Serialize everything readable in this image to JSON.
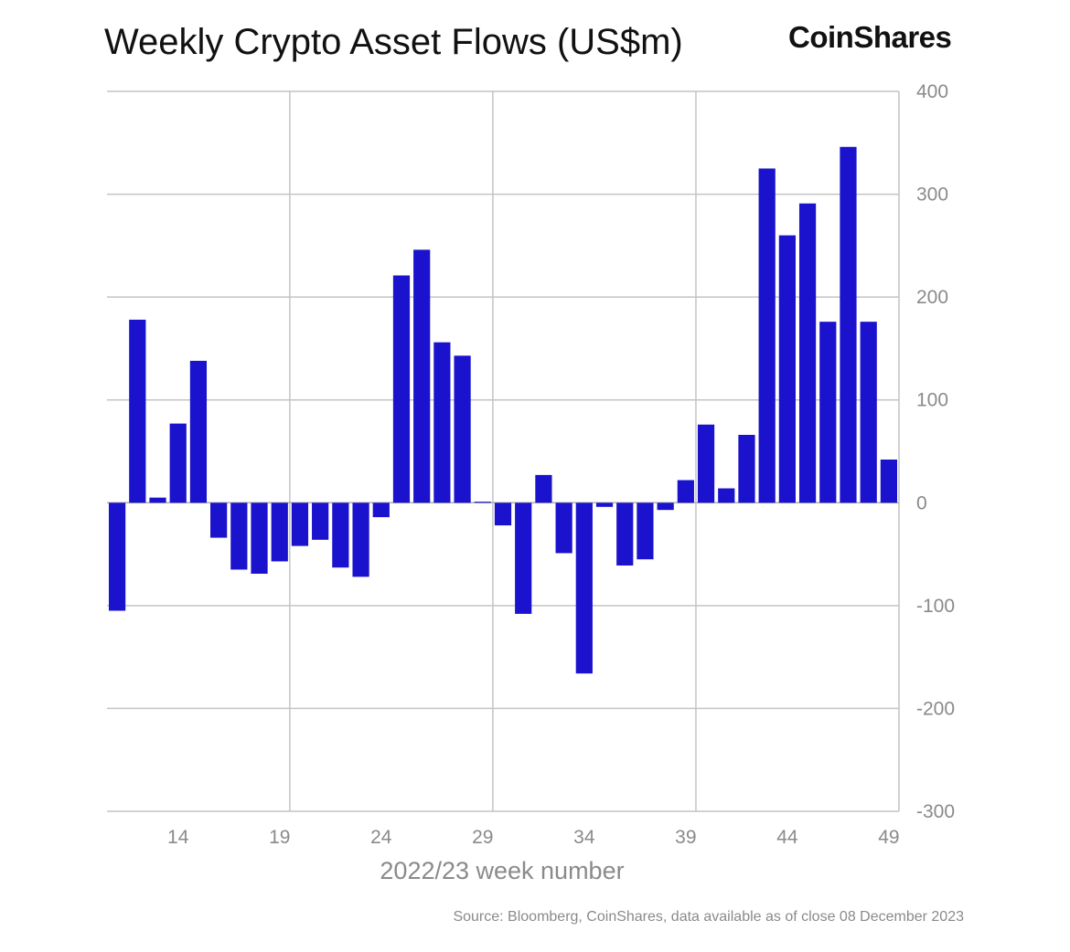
{
  "header": {
    "brand": "CoinShares"
  },
  "footer": {
    "source": "Source: Bloomberg, CoinShares, data available as of close 08 December 2023"
  },
  "chart_data": {
    "type": "bar",
    "title": "Weekly Crypto Asset Flows (US$m)",
    "xlabel": "2022/23 week number",
    "ylabel": "",
    "ylim": [
      -300,
      400
    ],
    "yticks": [
      400,
      300,
      200,
      100,
      0,
      -100,
      -200,
      -300
    ],
    "xticks": [
      14,
      19,
      24,
      29,
      34,
      39,
      44,
      49
    ],
    "y_axis_side": "right",
    "grid": true,
    "bar_color": "#1a12cc",
    "x": [
      11,
      12,
      13,
      14,
      15,
      16,
      17,
      18,
      19,
      20,
      21,
      22,
      23,
      24,
      25,
      26,
      27,
      28,
      29,
      30,
      31,
      32,
      33,
      34,
      35,
      36,
      37,
      38,
      39,
      40,
      41,
      42,
      43,
      44,
      45,
      46,
      47,
      48,
      49
    ],
    "values": [
      -105,
      178,
      5,
      77,
      138,
      -34,
      -65,
      -69,
      -57,
      -42,
      -36,
      -63,
      -72,
      -14,
      221,
      246,
      156,
      143,
      1,
      -22,
      -108,
      27,
      -49,
      -166,
      -4,
      -61,
      -55,
      -7,
      22,
      76,
      14,
      66,
      325,
      260,
      291,
      176,
      346,
      176,
      42
    ]
  }
}
